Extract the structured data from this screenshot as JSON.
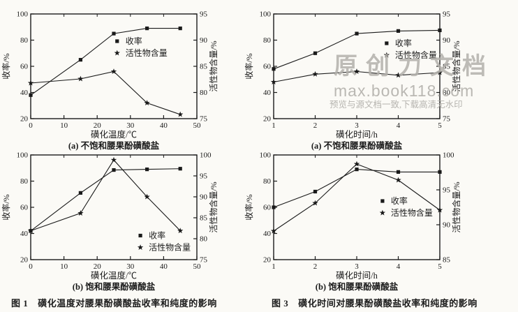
{
  "page": {
    "background": "#fbfaf6",
    "ink": "#1a1a1a"
  },
  "watermark": {
    "brand": "原创力文档",
    "domain": "max.book118.com",
    "note": "预览与源文档一致,下载高清无水印",
    "color": "#b3b1ac"
  },
  "figures": [
    {
      "label": "图 1",
      "caption": "磺化温度对腰果酚磺酸盐收率和纯度的影响"
    },
    {
      "label": "图 3",
      "caption": "磺化时间对腰果酚磺酸盐收率和纯度的影响"
    }
  ],
  "legend_labels": {
    "yield": "收率",
    "active": "活性物含量"
  },
  "chart_data": [
    {
      "type": "line",
      "panel_caption": "(a) 不饱和腰果酚磺酸盐",
      "xlabel": "磺化温度/℃",
      "ylabel_left": "收率/%",
      "ylabel_right": "活性物含量/%",
      "xlim": [
        0,
        50
      ],
      "xticks": [
        0,
        10,
        20,
        30,
        40,
        50
      ],
      "ylim_left": [
        20,
        100
      ],
      "yticks_left": [
        20,
        40,
        60,
        80,
        100
      ],
      "ylim_right": [
        75,
        95
      ],
      "yticks_right": [
        75,
        80,
        85,
        90,
        95
      ],
      "grid": false,
      "legend_pos": {
        "x": 0.52,
        "y": 0.26
      },
      "series": [
        {
          "name": "收率",
          "marker": "square",
          "axis": "left",
          "x": [
            0,
            15,
            25,
            35,
            45
          ],
          "y": [
            38,
            65,
            85,
            89,
            89
          ]
        },
        {
          "name": "活性物含量",
          "marker": "star",
          "axis": "right",
          "x": [
            0,
            15,
            25,
            35,
            45
          ],
          "y": [
            81.8,
            82.6,
            84,
            78,
            75.8
          ]
        }
      ]
    },
    {
      "type": "line",
      "panel_caption": "(a) 不饱和腰果酚磺酸盐",
      "xlabel": "磺化时间/h",
      "ylabel_left": "收率/%",
      "ylabel_right": "活性物含量/%",
      "xlim": [
        1,
        5
      ],
      "xticks": [
        1,
        2,
        3,
        4,
        5
      ],
      "ylim_left": [
        20,
        100
      ],
      "yticks_left": [
        20,
        40,
        60,
        80,
        100
      ],
      "ylim_right": [
        75,
        95
      ],
      "yticks_right": [
        75,
        80,
        85,
        90,
        95
      ],
      "grid": false,
      "legend_pos": {
        "x": 0.68,
        "y": 0.28
      },
      "series": [
        {
          "name": "收率",
          "marker": "square",
          "axis": "left",
          "x": [
            1,
            2,
            3,
            4,
            5
          ],
          "y": [
            58,
            70,
            85,
            87,
            87.5
          ]
        },
        {
          "name": "活性物含量",
          "marker": "star",
          "axis": "right",
          "x": [
            1,
            2,
            3,
            4,
            5
          ],
          "y": [
            82,
            83.5,
            84,
            83.3,
            83.8
          ]
        }
      ]
    },
    {
      "type": "line",
      "panel_caption": "(b) 饱和腰果酚磺酸盐",
      "xlabel": "磺化温度/℃",
      "ylabel_left": "收率/%",
      "ylabel_right": "活性物含量/%",
      "xlim": [
        0,
        50
      ],
      "xticks": [
        0,
        10,
        20,
        30,
        40,
        50
      ],
      "ylim_left": [
        20,
        100
      ],
      "yticks_left": [
        20,
        40,
        60,
        80,
        100
      ],
      "ylim_right": [
        75,
        100
      ],
      "yticks_right": [
        75,
        80,
        85,
        90,
        95,
        100
      ],
      "grid": false,
      "legend_pos": {
        "x": 0.66,
        "y": 0.77
      },
      "series": [
        {
          "name": "收率",
          "marker": "square",
          "axis": "left",
          "x": [
            0,
            15,
            25,
            35,
            45
          ],
          "y": [
            42,
            71,
            88.5,
            89,
            89.5
          ]
        },
        {
          "name": "活性物含量",
          "marker": "star",
          "axis": "right",
          "x": [
            0,
            15,
            25,
            35,
            45
          ],
          "y": [
            81.9,
            86.1,
            98.8,
            90,
            81.9
          ]
        }
      ]
    },
    {
      "type": "line",
      "panel_caption": "(b) 饱和腰果酚磺酸盐",
      "xlabel": "磺化时间/h",
      "ylabel_left": "收率/%",
      "ylabel_right": "活性物含量/%",
      "xlim": [
        1,
        5
      ],
      "xticks": [
        1,
        2,
        3,
        4,
        5
      ],
      "ylim_left": [
        20,
        100
      ],
      "yticks_left": [
        20,
        40,
        60,
        80,
        100
      ],
      "ylim_right": [
        85,
        100
      ],
      "yticks_right": [
        85,
        90,
        95,
        100
      ],
      "grid": false,
      "legend_pos": {
        "x": 0.655,
        "y": 0.44
      },
      "series": [
        {
          "name": "收率",
          "marker": "square",
          "axis": "left",
          "x": [
            1,
            2,
            3,
            4,
            5
          ],
          "y": [
            60,
            72,
            89,
            87,
            87
          ]
        },
        {
          "name": "活性物含量",
          "marker": "star",
          "axis": "right",
          "x": [
            1,
            2,
            3,
            4,
            5
          ],
          "y": [
            89.1,
            93.1,
            98.7,
            96.4,
            92.1
          ]
        }
      ]
    }
  ]
}
